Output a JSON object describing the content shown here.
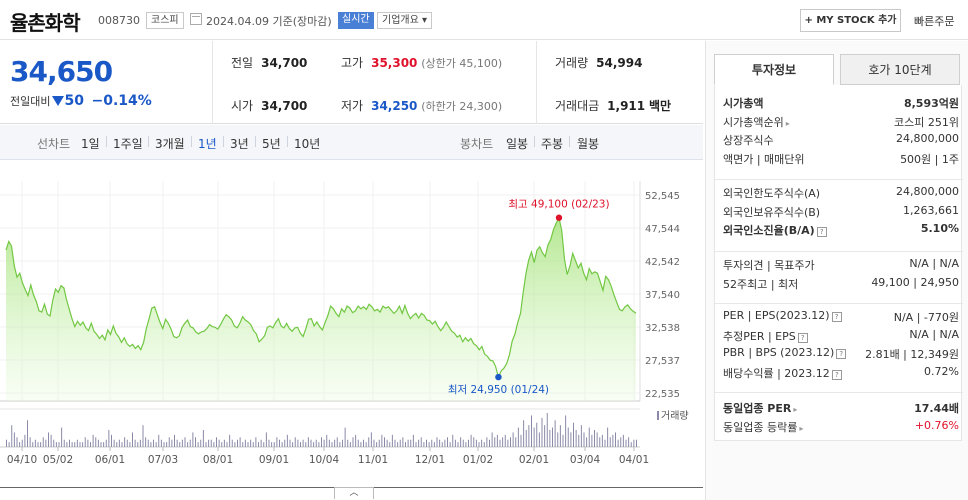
{
  "header": {
    "name": "율촌화학",
    "code": "008730",
    "market": "코스피",
    "date": "2024.04.09",
    "date_suffix": "기준(장마감)",
    "realtime": "실시간",
    "overview": "기업개요 ▾",
    "mystock": "+ MY STOCK 추가",
    "quick_order": "빠른주문"
  },
  "summary": {
    "price": "34,650",
    "change_label": "전일대비",
    "change_value": "50",
    "change_pct": "−0.14%",
    "prev_label": "전일",
    "prev_value": "34,700",
    "open_label": "시가",
    "open_value": "34,700",
    "high_label": "고가",
    "high_value": "35,300",
    "upper_limit": "(상한가 45,100)",
    "low_label": "저가",
    "low_value": "34,250",
    "lower_limit": "(하한가 24,300)",
    "volume_label": "거래량",
    "volume_value": "54,994",
    "amount_label": "거래대금",
    "amount_value": "1,911",
    "amount_unit": "백만"
  },
  "period_tabs": {
    "line_label": "선차트",
    "line": [
      "1일",
      "1주일",
      "3개월",
      "1년",
      "3년",
      "5년",
      "10년"
    ],
    "candle_label": "봉차트",
    "candle": [
      "일봉",
      "주봉",
      "월봉"
    ]
  },
  "chart_data": {
    "type": "area",
    "y_ticks": [
      "52,545",
      "47,544",
      "42,542",
      "37,540",
      "32,538",
      "27,537",
      "22,535"
    ],
    "ylim": [
      22535,
      52545
    ],
    "x_ticks": [
      "04/10",
      "05/02",
      "06/01",
      "07/03",
      "08/01",
      "09/01",
      "10/04",
      "11/01",
      "12/01",
      "01/02",
      "02/01",
      "03/04",
      "04/01"
    ],
    "high_annotation": "최고 49,100 (02/23)",
    "low_annotation": "최저 24,950 (01/24)",
    "volume_label": "거래량",
    "price_series": [
      44200,
      45500,
      44800,
      41800,
      40100,
      40700,
      39200,
      38200,
      37300,
      38900,
      37400,
      36400,
      35000,
      34800,
      36000,
      34500,
      34200,
      36600,
      38300,
      37800,
      38800,
      38500,
      36700,
      35200,
      33800,
      32600,
      33400,
      32800,
      33300,
      32400,
      32000,
      33100,
      31900,
      31400,
      30800,
      31300,
      30600,
      32100,
      31400,
      32700,
      31600,
      31000,
      30200,
      30900,
      30000,
      29600,
      29900,
      29300,
      29700,
      29100,
      30200,
      32300,
      33800,
      35400,
      35600,
      34400,
      33200,
      32300,
      33700,
      33100,
      32200,
      31100,
      30900,
      31200,
      32500,
      33100,
      33600,
      32600,
      32400,
      31800,
      31500,
      31800,
      31900,
      32300,
      32900,
      32600,
      32500,
      32200,
      32900,
      33700,
      34400,
      34100,
      33600,
      32700,
      32400,
      33100,
      34100,
      33600,
      33300,
      32900,
      32000,
      31500,
      30300,
      30700,
      31200,
      32500,
      32700,
      32400,
      33200,
      33800,
      32700,
      32400,
      33100,
      32300,
      31900,
      32400,
      32500,
      31600,
      31100,
      32300,
      33700,
      33800,
      32700,
      33300,
      32600,
      32100,
      33200,
      34300,
      35700,
      35300,
      34600,
      34100,
      35300,
      34800,
      35700,
      35400,
      34700,
      35000,
      35700,
      35300,
      35600,
      35200,
      36000,
      35600,
      35000,
      35200,
      34800,
      35700,
      35400,
      35600,
      35100,
      34600,
      35000,
      35700,
      34600,
      35800,
      34600,
      33800,
      34300,
      34600,
      33900,
      34600,
      34300,
      33600,
      33500,
      33000,
      33400,
      32600,
      32000,
      32500,
      33300,
      32600,
      31900,
      31600,
      31000,
      31300,
      30300,
      30900,
      30400,
      30800,
      30000,
      29700,
      29100,
      29600,
      28400,
      28100,
      27500,
      27400,
      26500,
      24950,
      25900,
      26300,
      27000,
      28300,
      30400,
      31500,
      33200,
      34600,
      37800,
      40700,
      42700,
      43900,
      42300,
      44200,
      44700,
      43800,
      43200,
      45000,
      45800,
      47300,
      48300,
      49100,
      47200,
      42800,
      40500,
      41800,
      43700,
      42600,
      41500,
      42200,
      40700,
      39700,
      41400,
      40600,
      40900,
      40700,
      39400,
      38100,
      40200,
      39700,
      38700,
      37400,
      36300,
      35200,
      35000,
      35600,
      35900,
      35300,
      34900,
      34650
    ],
    "volume_series": [
      3,
      2,
      9,
      6,
      4,
      2,
      3,
      5,
      11,
      4,
      2,
      3,
      2,
      2,
      4,
      3,
      6,
      5,
      3,
      2,
      2,
      8,
      3,
      2,
      3,
      2,
      2,
      3,
      2,
      2,
      4,
      3,
      2,
      5,
      4,
      3,
      2,
      2,
      3,
      7,
      5,
      3,
      2,
      3,
      2,
      4,
      3,
      2,
      6,
      3,
      2,
      3,
      9,
      4,
      3,
      2,
      3,
      2,
      5,
      3,
      2,
      2,
      4,
      3,
      5,
      3,
      2,
      3,
      4,
      2,
      3,
      6,
      4,
      2,
      3,
      7,
      2,
      3,
      3,
      2,
      4,
      3,
      2,
      3,
      2,
      5,
      3,
      2,
      3,
      4,
      2,
      3,
      2,
      3,
      2,
      4,
      2,
      3,
      2,
      6,
      3,
      2,
      2,
      4,
      3,
      2,
      3,
      5,
      3,
      2,
      4,
      3,
      2,
      3,
      2,
      4,
      3,
      2,
      3,
      2,
      4,
      3,
      5,
      3,
      2,
      3,
      4,
      2,
      3,
      8,
      3,
      2,
      4,
      5,
      3,
      2,
      3,
      2,
      4,
      6,
      3,
      2,
      3,
      5,
      4,
      3,
      2,
      5,
      3,
      2,
      3,
      4,
      2,
      3,
      3,
      5,
      2,
      3,
      4,
      2,
      3,
      2,
      3,
      2,
      4,
      3,
      2,
      3,
      4,
      2,
      5,
      3,
      2,
      4,
      3,
      2,
      3,
      5,
      4,
      3,
      2,
      3,
      2,
      4,
      3,
      6,
      4,
      5,
      3,
      4,
      5,
      3,
      4,
      6,
      4,
      8,
      5,
      11,
      7,
      9,
      13,
      8,
      10,
      6,
      12,
      9,
      14,
      7,
      8,
      11,
      6,
      9,
      5,
      13,
      8,
      6,
      10,
      7,
      5,
      9,
      6,
      4,
      8,
      5,
      7,
      6,
      4,
      5,
      3,
      8,
      4,
      5,
      6,
      3,
      4,
      5,
      3,
      4,
      2,
      3,
      3
    ]
  },
  "right_panel": {
    "tab_invest": "투자정보",
    "tab_hoga": "호가 10단계",
    "rows1": [
      {
        "l": "시가총액",
        "r": "8,593억원",
        "bold": true
      },
      {
        "l": "시가총액순위",
        "r": "코스피 251위"
      },
      {
        "l": "상장주식수",
        "r": "24,800,000"
      },
      {
        "l": "액면가 | 매매단위",
        "r": "500원 | 1주"
      }
    ],
    "rows2": [
      {
        "l": "외국인한도주식수(A)",
        "r": "24,800,000"
      },
      {
        "l": "외국인보유주식수(B)",
        "r": "1,263,661"
      },
      {
        "l": "외국인소진율(B/A)",
        "r": "5.10%",
        "bold": true
      }
    ],
    "rows3": [
      {
        "l": "투자의견 | 목표주가",
        "r": "N/A | N/A"
      },
      {
        "l": "52주최고 | 최저",
        "r": "49,100 | 24,950"
      }
    ],
    "rows4": [
      {
        "l": "PER | EPS(2023.12)",
        "r": "N/A | -770원"
      },
      {
        "l": "추정PER | EPS",
        "r": "N/A | N/A"
      },
      {
        "l": "PBR | BPS (2023.12)",
        "r": "2.81배 | 12,349원"
      },
      {
        "l": "배당수익률 | 2023.12",
        "r": "0.72%"
      }
    ],
    "rows5": [
      {
        "l": "동일업종 PER",
        "r": "17.44배",
        "bold": true
      },
      {
        "l": "동일업종 등락률",
        "r": "+0.76%",
        "up": true
      }
    ]
  }
}
